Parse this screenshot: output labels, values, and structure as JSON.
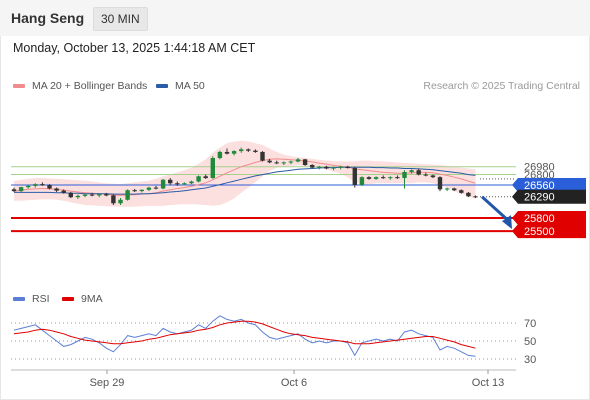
{
  "header": {
    "instrument": "Hang Seng",
    "interval": "30 MIN"
  },
  "datetime": "Monday, October 13, 2025 1:44:18 AM CET",
  "legend": {
    "ma20_label": "MA 20 + Bollinger Bands",
    "ma50_label": "MA 50",
    "copyright": "Research © 2025 Trading Central"
  },
  "rsi_legend": {
    "rsi_label": "RSI",
    "ma_label": "9MA"
  },
  "colors": {
    "ma20": "#f08c8c",
    "ma50": "#2a5ca8",
    "bollinger": "#fcd9d9",
    "support": "#e00000",
    "pivot": "#2b5fd9",
    "resistance": "#a8d08d",
    "rsi": "#5b7fd6",
    "rsi_ma": "#e00000"
  },
  "price_levels": [
    {
      "label": "26980",
      "value": 26980,
      "kind": "resistance"
    },
    {
      "label": "26800",
      "value": 26800,
      "kind": "resistance"
    },
    {
      "label": "26560",
      "value": 26560,
      "kind": "pivot"
    },
    {
      "label": "26290",
      "value": 26290,
      "kind": "current"
    },
    {
      "label": "25800",
      "value": 25800,
      "kind": "support"
    },
    {
      "label": "25500",
      "value": 25500,
      "kind": "support"
    }
  ],
  "rsi_levels": [
    {
      "label": "70",
      "value": 70
    },
    {
      "label": "50",
      "value": 50
    },
    {
      "label": "30",
      "value": 30
    }
  ],
  "x_axis": {
    "ticks": [
      "Sep 29",
      "Oct 6",
      "Oct 13"
    ]
  },
  "chart_data": {
    "type": "candlestick",
    "title": "",
    "ylim": [
      25400,
      27700
    ],
    "candles": [
      [
        26460,
        26500,
        26400,
        26420
      ],
      [
        26420,
        26520,
        26400,
        26510
      ],
      [
        26510,
        26560,
        26480,
        26540
      ],
      [
        26540,
        26600,
        26500,
        26580
      ],
      [
        26580,
        26620,
        26540,
        26560
      ],
      [
        26560,
        26580,
        26460,
        26480
      ],
      [
        26480,
        26500,
        26400,
        26430
      ],
      [
        26430,
        26460,
        26360,
        26380
      ],
      [
        26380,
        26400,
        26260,
        26280
      ],
      [
        26280,
        26340,
        26240,
        26310
      ],
      [
        26310,
        26360,
        26280,
        26340
      ],
      [
        26340,
        26380,
        26300,
        26320
      ],
      [
        26320,
        26360,
        26280,
        26350
      ],
      [
        26350,
        26380,
        26300,
        26320
      ],
      [
        26320,
        26340,
        26100,
        26140
      ],
      [
        26140,
        26260,
        26100,
        26220
      ],
      [
        26220,
        26460,
        26200,
        26440
      ],
      [
        26440,
        26470,
        26400,
        26420
      ],
      [
        26420,
        26460,
        26390,
        26450
      ],
      [
        26450,
        26520,
        26420,
        26500
      ],
      [
        26500,
        26540,
        26460,
        26480
      ],
      [
        26480,
        26700,
        26460,
        26680
      ],
      [
        26680,
        26720,
        26560,
        26600
      ],
      [
        26600,
        26640,
        26540,
        26580
      ],
      [
        26580,
        26620,
        26560,
        26600
      ],
      [
        26600,
        26660,
        26580,
        26640
      ],
      [
        26640,
        26780,
        26620,
        26760
      ],
      [
        26760,
        26800,
        26700,
        26720
      ],
      [
        26720,
        27220,
        26700,
        27180
      ],
      [
        27180,
        27350,
        27150,
        27320
      ],
      [
        27320,
        27400,
        27260,
        27280
      ],
      [
        27280,
        27360,
        27240,
        27340
      ],
      [
        27340,
        27420,
        27300,
        27380
      ],
      [
        27380,
        27400,
        27320,
        27350
      ],
      [
        27350,
        27380,
        27300,
        27320
      ],
      [
        27320,
        27340,
        27100,
        27120
      ],
      [
        27120,
        27160,
        27060,
        27080
      ],
      [
        27080,
        27120,
        27040,
        27060
      ],
      [
        27060,
        27100,
        27020,
        27080
      ],
      [
        27080,
        27120,
        27040,
        27100
      ],
      [
        27100,
        27180,
        27080,
        27150
      ],
      [
        27150,
        27160,
        27000,
        27020
      ],
      [
        27020,
        27040,
        26940,
        26960
      ],
      [
        26960,
        27000,
        26920,
        26980
      ],
      [
        26980,
        27000,
        26920,
        26940
      ],
      [
        26940,
        26980,
        26900,
        26960
      ],
      [
        26960,
        27000,
        26920,
        26980
      ],
      [
        26980,
        27000,
        26940,
        26950
      ],
      [
        26950,
        26980,
        26500,
        26560
      ],
      [
        26560,
        26760,
        26540,
        26740
      ],
      [
        26740,
        26760,
        26680,
        26700
      ],
      [
        26700,
        26760,
        26680,
        26740
      ],
      [
        26740,
        26780,
        26700,
        26720
      ],
      [
        26720,
        26760,
        26680,
        26740
      ],
      [
        26740,
        26780,
        26700,
        26720
      ],
      [
        26720,
        26900,
        26480,
        26860
      ],
      [
        26860,
        26920,
        26820,
        26900
      ],
      [
        26900,
        26940,
        26780,
        26800
      ],
      [
        26800,
        26840,
        26760,
        26780
      ],
      [
        26780,
        26800,
        26720,
        26740
      ],
      [
        26740,
        26760,
        26420,
        26460
      ],
      [
        26460,
        26500,
        26420,
        26480
      ],
      [
        26480,
        26500,
        26420,
        26440
      ],
      [
        26440,
        26460,
        26360,
        26380
      ],
      [
        26380,
        26400,
        26280,
        26300
      ],
      [
        26300,
        26320,
        26260,
        26290
      ]
    ],
    "ma20": [
      26420,
      26440,
      26460,
      26470,
      26480,
      26470,
      26460,
      26440,
      26420,
      26400,
      26380,
      26370,
      26360,
      26350,
      26330,
      26320,
      26330,
      26340,
      26350,
      26360,
      26380,
      26420,
      26450,
      26480,
      26500,
      26530,
      26570,
      26610,
      26680,
      26760,
      26840,
      26910,
      26980,
      27030,
      27080,
      27120,
      27150,
      27160,
      27150,
      27140,
      27130,
      27110,
      27090,
      27060,
      27040,
      27010,
      26990,
      26970,
      26930,
      26910,
      26890,
      26870,
      26850,
      26840,
      26830,
      26830,
      26840,
      26850,
      26850,
      26840,
      26810,
      26780,
      26740,
      26700,
      26650,
      26600
    ],
    "ma50": [
      26390,
      26390,
      26390,
      26390,
      26390,
      26390,
      26380,
      26380,
      26370,
      26370,
      26360,
      26360,
      26360,
      26360,
      26350,
      26350,
      26350,
      26350,
      26360,
      26360,
      26370,
      26380,
      26400,
      26410,
      26430,
      26450,
      26470,
      26490,
      26530,
      26570,
      26610,
      26650,
      26690,
      26730,
      26770,
      26800,
      26830,
      26860,
      26880,
      26900,
      26920,
      26930,
      26940,
      26950,
      26960,
      26960,
      26970,
      26970,
      26970,
      26970,
      26970,
      26960,
      26960,
      26950,
      26950,
      26940,
      26940,
      26930,
      26920,
      26910,
      26890,
      26870,
      26850,
      26830,
      26800,
      26780
    ],
    "bb_upper": [
      26650,
      26680,
      26700,
      26720,
      26720,
      26710,
      26700,
      26690,
      26680,
      26670,
      26660,
      26640,
      26620,
      26600,
      26590,
      26580,
      26600,
      26620,
      26640,
      26660,
      26700,
      26760,
      26800,
      26850,
      26900,
      26960,
      27050,
      27150,
      27300,
      27420,
      27520,
      27560,
      27580,
      27560,
      27520,
      27480,
      27400,
      27320,
      27260,
      27220,
      27200,
      27180,
      27160,
      27140,
      27120,
      27110,
      27100,
      27100,
      27100,
      27120,
      27120,
      27110,
      27100,
      27090,
      27080,
      27070,
      27060,
      27050,
      27040,
      27030,
      27020,
      27000,
      26980,
      26960,
      26940,
      26920
    ],
    "bb_lower": [
      26200,
      26200,
      26210,
      26220,
      26230,
      26230,
      26220,
      26200,
      26160,
      26130,
      26100,
      26090,
      26080,
      26070,
      26060,
      26060,
      26060,
      26060,
      26070,
      26080,
      26080,
      26080,
      26100,
      26110,
      26120,
      26120,
      26110,
      26100,
      26080,
      26100,
      26160,
      26250,
      26380,
      26500,
      26620,
      26760,
      26880,
      26960,
      26980,
      27000,
      27010,
      27000,
      26980,
      26960,
      26920,
      26870,
      26820,
      26740,
      26620,
      26580,
      26580,
      26600,
      26600,
      26600,
      26600,
      26600,
      26600,
      26620,
      26620,
      26600,
      26560,
      26500,
      26420,
      26360,
      26300,
      26240
    ],
    "forecast_arrow": {
      "from": 26290,
      "to": 25500
    },
    "rsi": [
      62,
      64,
      66,
      68,
      62,
      56,
      50,
      44,
      46,
      50,
      54,
      52,
      48,
      42,
      38,
      46,
      56,
      54,
      56,
      58,
      56,
      64,
      60,
      58,
      60,
      62,
      68,
      64,
      72,
      78,
      74,
      72,
      74,
      70,
      68,
      60,
      54,
      52,
      54,
      56,
      58,
      52,
      48,
      50,
      48,
      50,
      50,
      48,
      34,
      48,
      50,
      52,
      50,
      52,
      50,
      60,
      62,
      58,
      56,
      54,
      40,
      44,
      42,
      38,
      34,
      33
    ],
    "rsi_ma": [
      58,
      59,
      60,
      62,
      63,
      62,
      60,
      58,
      55,
      53,
      51,
      50,
      49,
      48,
      47,
      47,
      48,
      49,
      50,
      52,
      53,
      55,
      57,
      58,
      59,
      60,
      62,
      63,
      65,
      68,
      70,
      71,
      72,
      72,
      71,
      69,
      66,
      63,
      60,
      58,
      57,
      56,
      54,
      53,
      52,
      51,
      50,
      49,
      47,
      47,
      47,
      48,
      49,
      50,
      51,
      52,
      53,
      54,
      55,
      55,
      53,
      51,
      49,
      46,
      44,
      42
    ]
  }
}
